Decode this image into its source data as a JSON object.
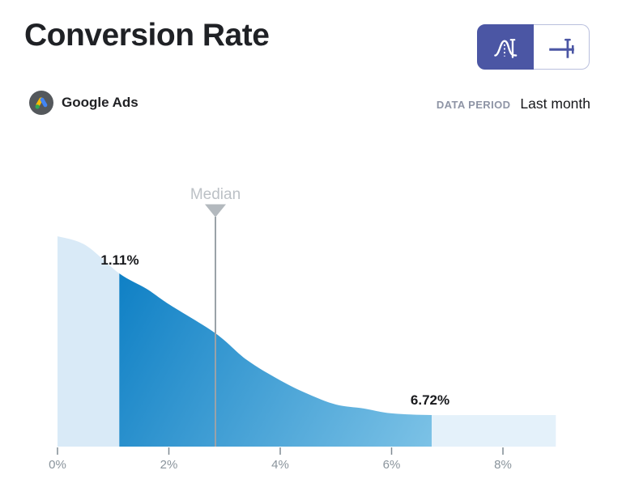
{
  "header": {
    "title": "Conversion Rate",
    "source_label": "Google Ads",
    "data_period_label": "DATA PERIOD",
    "data_period_value": "Last month",
    "view_toggle": {
      "options": [
        {
          "id": "distribution",
          "icon": "distribution-curve-icon",
          "selected": true
        },
        {
          "id": "box_plot",
          "icon": "box-plot-icon",
          "selected": false
        }
      ]
    }
  },
  "chart_data": {
    "type": "area",
    "subtype": "distribution_density_curve",
    "title": "Conversion Rate",
    "source": "Google Ads",
    "period": "Last month",
    "x_unit": "percent",
    "x_range": [
      0,
      8.95
    ],
    "x_tick_values": [
      0,
      2,
      4,
      6,
      8
    ],
    "x_ticks": [
      "0%",
      "2%",
      "4%",
      "6%",
      "8%"
    ],
    "grid": false,
    "legend": "none",
    "median": {
      "label": "Median",
      "value_percent": 2.84
    },
    "highlight_range": {
      "from_percent": 1.11,
      "from_label": "1.11%",
      "to_percent": 6.72,
      "to_label": "6.72%"
    },
    "curve_points": [
      {
        "x": 0,
        "density": 1.0
      },
      {
        "x": 0.5,
        "density": 0.958
      },
      {
        "x": 1.11,
        "density": 0.823
      },
      {
        "x": 1.6,
        "density": 0.75
      },
      {
        "x": 2.0,
        "density": 0.677
      },
      {
        "x": 2.84,
        "density": 0.538
      },
      {
        "x": 3.4,
        "density": 0.412
      },
      {
        "x": 4.0,
        "density": 0.315
      },
      {
        "x": 4.5,
        "density": 0.25
      },
      {
        "x": 5.0,
        "density": 0.2
      },
      {
        "x": 5.5,
        "density": 0.181
      },
      {
        "x": 6.0,
        "density": 0.158
      },
      {
        "x": 6.72,
        "density": 0.15
      },
      {
        "x": 7.5,
        "density": 0.15
      },
      {
        "x": 8.95,
        "density": 0.15
      }
    ]
  },
  "colors": {
    "accent_indigo": "#4b56a4",
    "highlight_gradient_start": "#0f80c5",
    "highlight_gradient_end": "#7cc2e6",
    "left_tail_fill": "#d9eaf7",
    "right_tail_fill": "#e4f1fa",
    "median_gray": "#9aa2a8",
    "axis_label_gray": "#8a949c",
    "title_color": "#1f2125"
  }
}
